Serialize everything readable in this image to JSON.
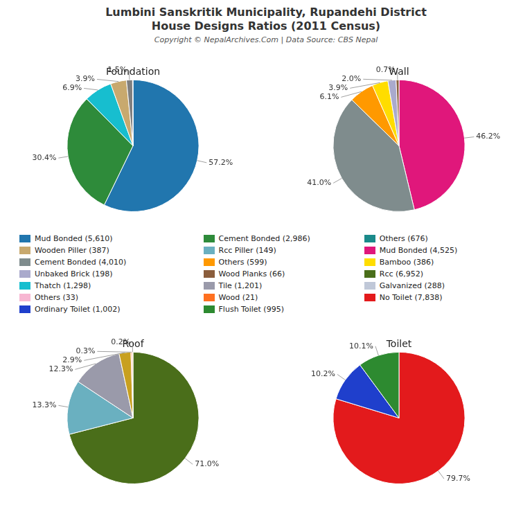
{
  "title": [
    "Lumbini Sanskritik Municipality, Rupandehi District",
    "House Designs Ratios (2011 Census)"
  ],
  "subtitle": "Copyright © NepalArchives.Com | Data Source: CBS Nepal",
  "legend_entries": [
    {
      "name": "Mud Bonded (5,610)",
      "color": "#2176ae"
    },
    {
      "name": "Wooden Piller (387)",
      "color": "#c8a96e"
    },
    {
      "name": "Cement Bonded (4,010)",
      "color": "#7f8c8d"
    },
    {
      "name": "Unbaked Brick (198)",
      "color": "#aaaacc"
    },
    {
      "name": "Thatch (1,298)",
      "color": "#17becf"
    },
    {
      "name": "Others (33)",
      "color": "#f7b6d2"
    },
    {
      "name": "Ordinary Toilet (1,002)",
      "color": "#1f3fcc"
    },
    {
      "name": "Cement Bonded (2,986)",
      "color": "#2e8b3a"
    },
    {
      "name": "Rcc Piller (149)",
      "color": "#6ab0c0"
    },
    {
      "name": "Others (599)",
      "color": "#ff9900"
    },
    {
      "name": "Wood Planks (66)",
      "color": "#8B5e3c"
    },
    {
      "name": "Tile (1,201)",
      "color": "#9a9aaa"
    },
    {
      "name": "Wood (21)",
      "color": "#ff7020"
    },
    {
      "name": "Flush Toilet (995)",
      "color": "#2d8a30"
    },
    {
      "name": "Others (676)",
      "color": "#1a8a8a"
    },
    {
      "name": "Mud Bonded (4,525)",
      "color": "#e0177b"
    },
    {
      "name": "Bamboo (386)",
      "color": "#ffdd00"
    },
    {
      "name": "Rcc (6,952)",
      "color": "#4a6e1a"
    },
    {
      "name": "Galvanized (288)",
      "color": "#c0c8d8"
    },
    {
      "name": "No Toilet (7,838)",
      "color": "#e31a1c"
    }
  ],
  "chart_data": [
    {
      "type": "pie",
      "title": "Foundation",
      "values": [
        57.2,
        30.4,
        6.9,
        3.9,
        1.5,
        0.1
      ],
      "value_labels": [
        "57.2%",
        "30.4%",
        "6.9%",
        "3.9%",
        "1.5%",
        null
      ],
      "colors": [
        "#2176ae",
        "#2e8b3a",
        "#17becf",
        "#c8a96e",
        "#7f7f7f",
        "#f7b6d2"
      ],
      "data_labels": true
    },
    {
      "type": "pie",
      "title": "Wall",
      "values": [
        46.2,
        41.0,
        6.1,
        3.9,
        2.0,
        0.7
      ],
      "value_labels": [
        "46.2%",
        "41.0%",
        "6.1%",
        "3.9%",
        "2.0%",
        "0.7%"
      ],
      "colors": [
        "#e0177b",
        "#7f8c8d",
        "#ff9900",
        "#ffdd00",
        "#aaaacc",
        "#8B5e3c"
      ],
      "data_labels": true
    },
    {
      "type": "pie",
      "title": "Roof",
      "values": [
        71.0,
        13.3,
        12.3,
        2.9,
        0.3,
        0.2
      ],
      "value_labels": [
        "71.0%",
        "13.3%",
        "12.3%",
        "2.9%",
        "0.3%",
        "0.2%"
      ],
      "colors": [
        "#4a6e1a",
        "#6ab0c0",
        "#9a9aaa",
        "#c8a020",
        "#ff7020",
        "#f7c0a0"
      ],
      "data_labels": true
    },
    {
      "type": "pie",
      "title": "Toilet",
      "values": [
        79.7,
        10.2,
        10.1
      ],
      "value_labels": [
        "79.7%",
        "10.2%",
        "10.1%"
      ],
      "colors": [
        "#e31a1c",
        "#1f3fcc",
        "#2d8a30"
      ],
      "data_labels": true
    }
  ]
}
